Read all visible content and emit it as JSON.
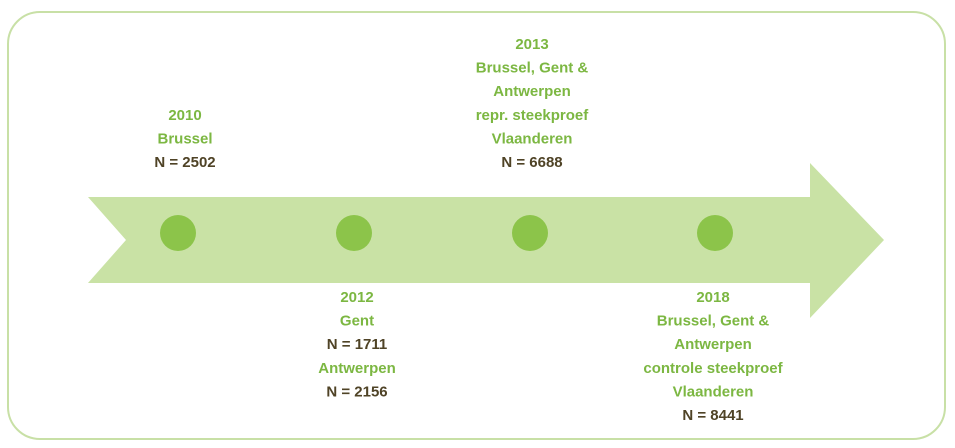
{
  "nodes": [
    {
      "groups": [
        {
          "labels": [
            "2010",
            "Brussel"
          ],
          "count": "N = 2502"
        }
      ]
    },
    {
      "groups": [
        {
          "labels": [
            "2012",
            "Gent"
          ],
          "count": "N = 1711"
        },
        {
          "labels": [
            "Antwerpen"
          ],
          "count": "N = 2156"
        }
      ]
    },
    {
      "groups": [
        {
          "labels": [
            "2013",
            "Brussel, Gent &",
            "Antwerpen",
            "repr. steekproef",
            "Vlaanderen"
          ],
          "count": "N = 6688"
        }
      ]
    },
    {
      "groups": [
        {
          "labels": [
            "2018",
            "Brussel, Gent &",
            "Antwerpen",
            "controle steekproef",
            "Vlaanderen"
          ],
          "count": "N = 8441"
        }
      ]
    }
  ]
}
